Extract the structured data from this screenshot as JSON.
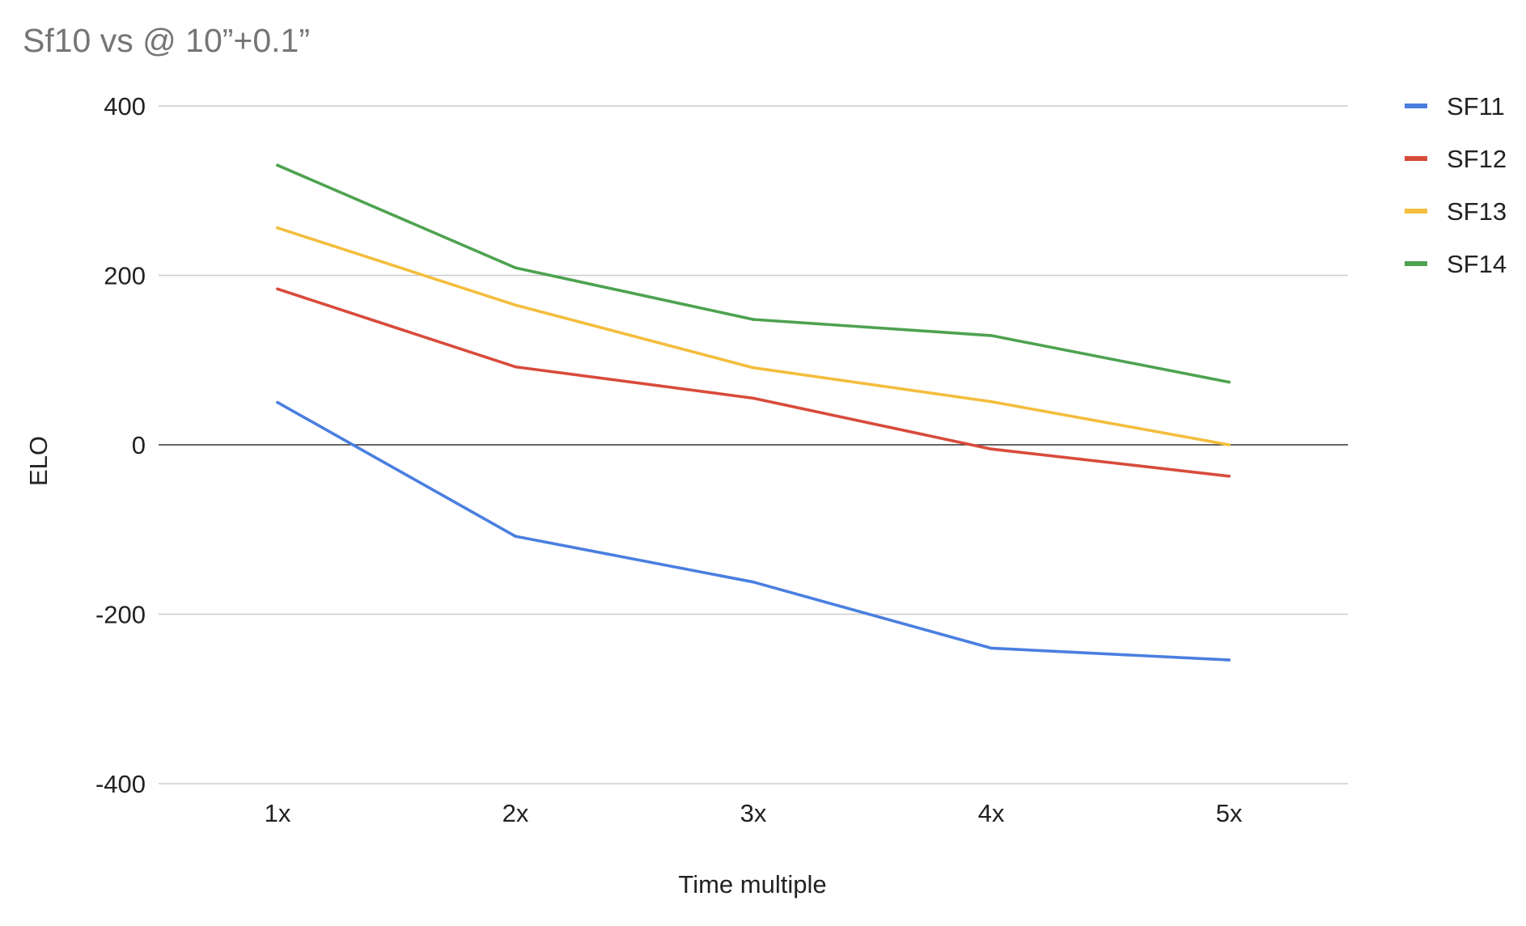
{
  "chart_data": {
    "type": "line",
    "title": "Sf10 vs @ 10”+0.1”",
    "xlabel": "Time multiple",
    "ylabel": "ELO",
    "categories": [
      "1x",
      "2x",
      "3x",
      "4x",
      "5x"
    ],
    "ylim": [
      -400,
      400
    ],
    "yticks": [
      400,
      200,
      0,
      -200,
      -400
    ],
    "grid": true,
    "legend_position": "right",
    "series": [
      {
        "name": "SF11",
        "color": "#4a7fe0",
        "values": [
          50,
          -108,
          -162,
          -240,
          -254
        ]
      },
      {
        "name": "SF12",
        "color": "#d84b3c",
        "values": [
          184,
          92,
          55,
          -5,
          -37
        ]
      },
      {
        "name": "SF13",
        "color": "#f4bd3d",
        "values": [
          256,
          165,
          91,
          51,
          0
        ]
      },
      {
        "name": "SF14",
        "color": "#4ea250",
        "values": [
          330,
          209,
          148,
          129,
          74
        ]
      }
    ]
  }
}
